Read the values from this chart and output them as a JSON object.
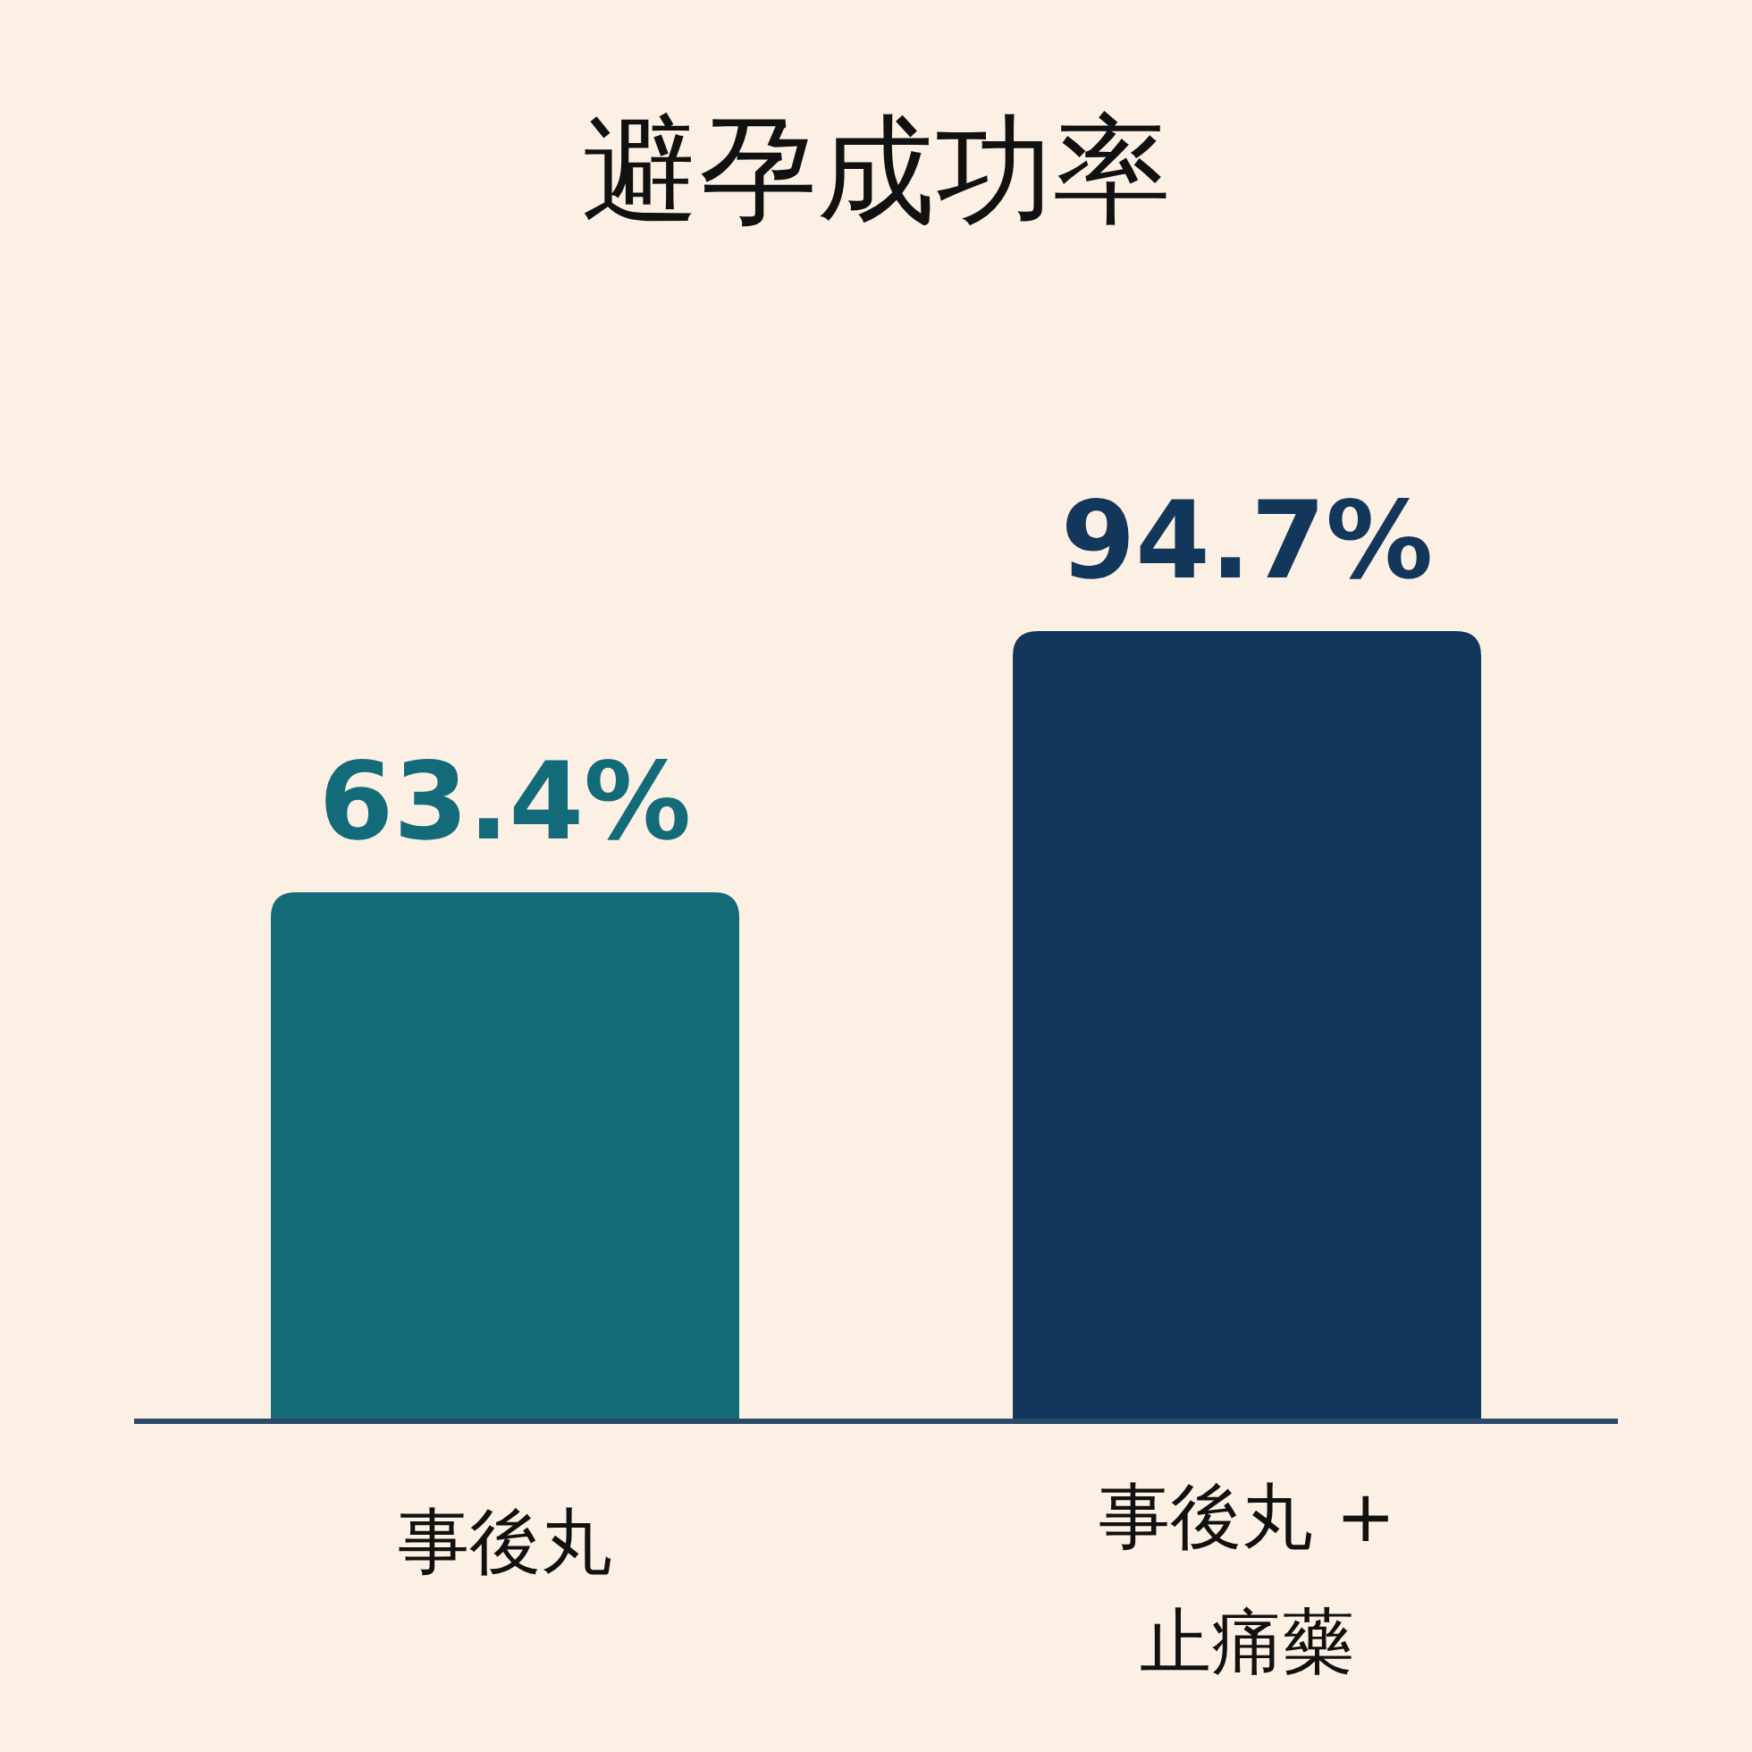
{
  "chart_data": {
    "type": "bar",
    "title": "避孕成功率",
    "categories": [
      "事後丸",
      "事後丸 + 止痛藥"
    ],
    "values": [
      63.4,
      94.7
    ],
    "value_labels": [
      "63.4%",
      "94.7%"
    ],
    "colors": [
      "#136b7a",
      "#12375a"
    ]
  }
}
